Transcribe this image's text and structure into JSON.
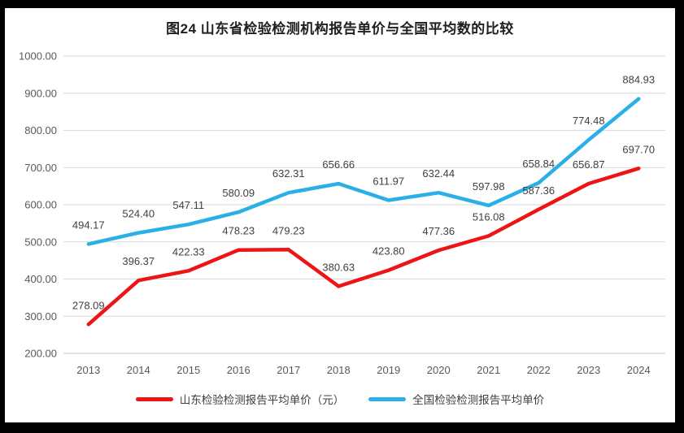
{
  "chart_data": {
    "type": "line",
    "title": "图24  山东省检验检测机构报告单价与全国平均数的比较",
    "categories": [
      "2013",
      "2014",
      "2015",
      "2016",
      "2017",
      "2018",
      "2019",
      "2020",
      "2021",
      "2022",
      "2023",
      "2024"
    ],
    "series": [
      {
        "name": "山东检验检测报告平均单价（元）",
        "color": "#ee1416",
        "values": [
          278.09,
          396.37,
          422.33,
          478.23,
          479.23,
          380.63,
          423.8,
          477.36,
          516.08,
          587.36,
          656.87,
          697.7
        ]
      },
      {
        "name": "全国检验检测报告平均单价",
        "color": "#2ab0e6",
        "values": [
          494.17,
          524.4,
          547.11,
          580.09,
          632.31,
          656.66,
          611.97,
          632.44,
          597.98,
          658.84,
          774.48,
          884.93
        ]
      }
    ],
    "ylim": [
      200,
      1000
    ],
    "ytick_step": 100,
    "ytick_labels": [
      "200.00",
      "300.00",
      "400.00",
      "500.00",
      "600.00",
      "700.00",
      "800.00",
      "900.00",
      "1000.00"
    ],
    "grid": true,
    "data_labels": true,
    "label_decimals": 2,
    "legend_position": "bottom",
    "colors": {
      "axis_text": "#595959",
      "data_label_text": "#404040",
      "gridline": "#d9d9d9",
      "axis_line": "#c4c4c4",
      "title_text": "#1f1f1f",
      "chart_background": "#ffffff",
      "frame_background": "#000000"
    }
  }
}
